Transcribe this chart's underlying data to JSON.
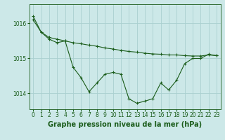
{
  "title": "Graphe pression niveau de la mer (hPa)",
  "background_color": "#cce8e8",
  "grid_color": "#aad0d0",
  "line_color": "#1a5c1a",
  "x_hours": [
    0,
    1,
    2,
    3,
    4,
    5,
    6,
    7,
    8,
    9,
    10,
    11,
    12,
    13,
    14,
    15,
    16,
    17,
    18,
    19,
    20,
    21,
    22,
    23
  ],
  "line1_y": [
    1016.2,
    1015.75,
    1015.6,
    1015.55,
    1015.5,
    1015.45,
    1015.42,
    1015.38,
    1015.35,
    1015.3,
    1015.27,
    1015.23,
    1015.2,
    1015.18,
    1015.15,
    1015.13,
    1015.12,
    1015.1,
    1015.1,
    1015.08,
    1015.07,
    1015.07,
    1015.1,
    1015.08
  ],
  "line2_y": [
    1016.1,
    1015.75,
    1015.55,
    1015.45,
    1015.5,
    1014.75,
    1014.45,
    1014.05,
    1014.3,
    1014.55,
    1014.6,
    1014.55,
    1013.85,
    1013.72,
    1013.78,
    1013.85,
    1014.3,
    1014.1,
    1014.38,
    1014.85,
    1015.0,
    1015.0,
    1015.12,
    1015.08
  ],
  "ylim": [
    1013.55,
    1016.55
  ],
  "yticks": [
    1014,
    1015,
    1016
  ],
  "title_fontsize": 7.0,
  "tick_fontsize": 5.5
}
